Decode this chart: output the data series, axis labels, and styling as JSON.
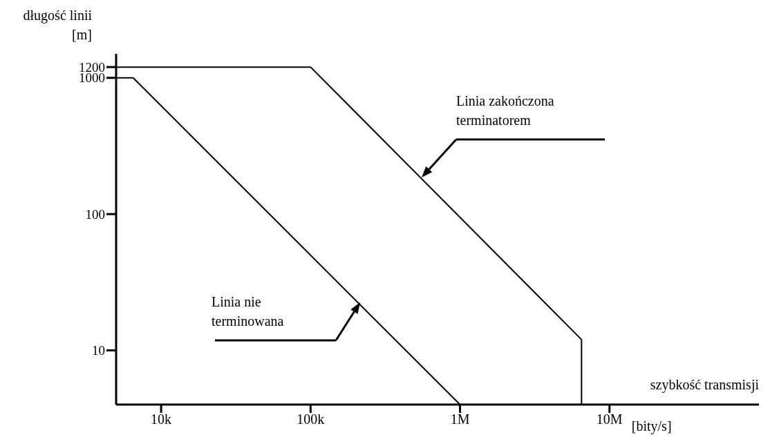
{
  "chart_data": {
    "type": "line",
    "xlabel": "szybkość transmisji",
    "ylabel": "długość linii [m]",
    "log": "xy",
    "grid": false,
    "legend": false,
    "marker": "none",
    "line_style": "solid",
    "xlim": [
      5000,
      100000000
    ],
    "xticks": [
      {
        "value": 10000,
        "label": "10k"
      },
      {
        "value": 100000,
        "label": "100k"
      },
      {
        "value": 1000000,
        "label": "1M"
      },
      {
        "value": 10000000,
        "label": "10M"
      }
    ],
    "ylim": [
      4,
      1500
    ],
    "yticks": [
      10,
      100,
      1000,
      1200
    ],
    "series": [
      {
        "color": "#000000",
        "x": [
          5000,
          100000,
          6500000,
          6500000
        ],
        "values": [
          1200,
          1200,
          12,
          4
        ]
      },
      {
        "color": "#000000",
        "x": [
          5000,
          6500,
          1000000
        ],
        "values": [
          1000,
          1000,
          4
        ]
      }
    ],
    "annotations": [
      "Linia zakończona terminatorem",
      "Linia nie terminowana",
      "[bity/s]"
    ]
  }
}
